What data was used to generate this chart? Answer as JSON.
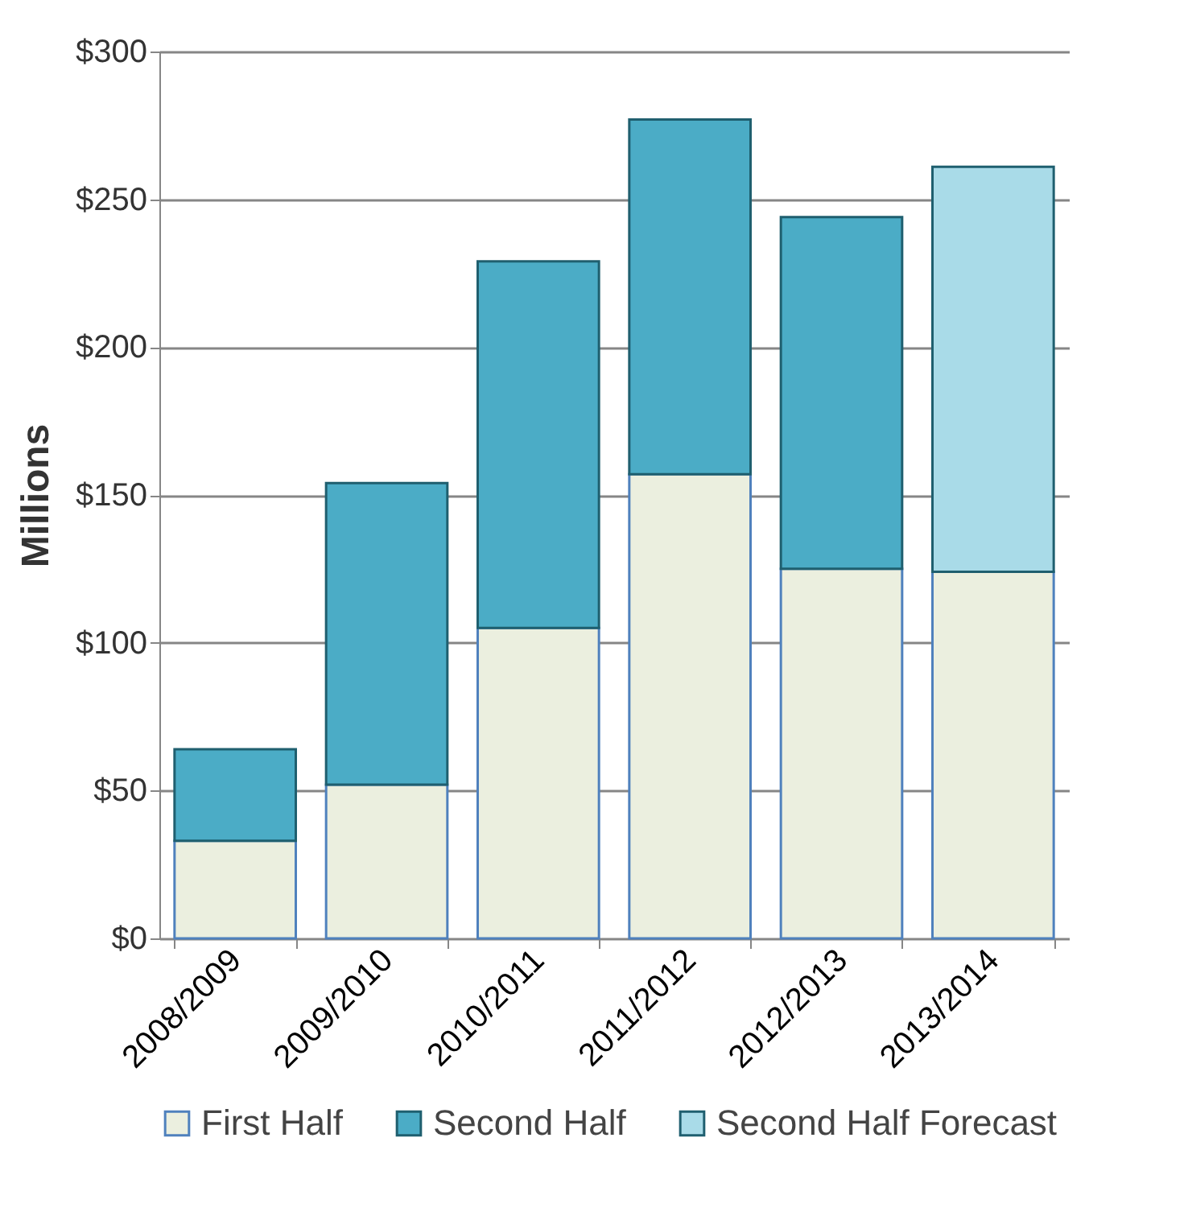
{
  "chart_data": {
    "type": "bar",
    "stacked": true,
    "ylabel": "Millions",
    "categories": [
      "2008/2009",
      "2009/2010",
      "2010/2011",
      "2011/2012",
      "2012/2013",
      "2013/2014"
    ],
    "series": [
      {
        "name": "First Half",
        "color": "#ebefdf",
        "values": [
          33,
          52,
          105,
          157,
          125,
          124
        ]
      },
      {
        "name": "Second Half",
        "color": "#4bacc6",
        "values": [
          31,
          102,
          124,
          120,
          119,
          null
        ]
      },
      {
        "name": "Second Half Forecast",
        "color": "#a9dbe8",
        "values": [
          null,
          null,
          null,
          null,
          null,
          137
        ]
      }
    ],
    "ylim": [
      0,
      300
    ],
    "yticks": [
      {
        "value": 0,
        "label": "$0"
      },
      {
        "value": 50,
        "label": "$50"
      },
      {
        "value": 100,
        "label": "$100"
      },
      {
        "value": 150,
        "label": "$150"
      },
      {
        "value": 200,
        "label": "$200"
      },
      {
        "value": 250,
        "label": "$250"
      },
      {
        "value": 300,
        "label": "$300"
      }
    ],
    "grid": "y",
    "legend": "bottom"
  }
}
